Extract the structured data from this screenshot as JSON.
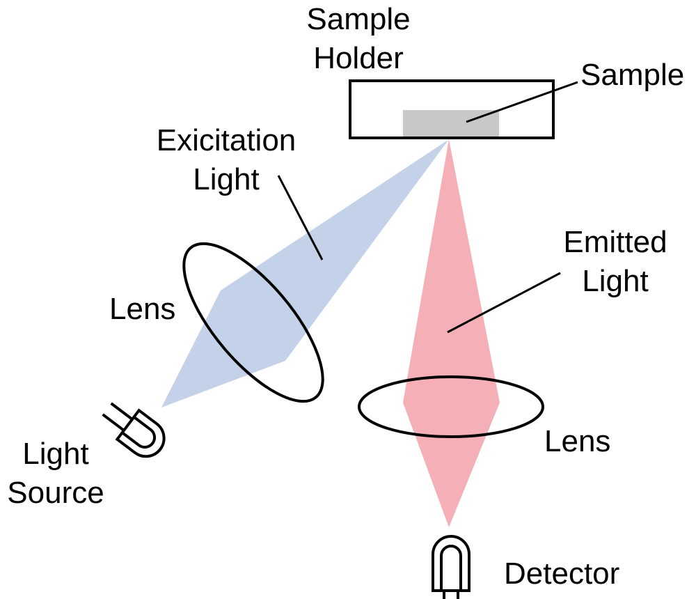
{
  "labels": {
    "sample_holder": [
      "Sample",
      "Holder"
    ],
    "sample": "Sample",
    "excitation_light": [
      "Exicitation",
      "Light"
    ],
    "emitted_light": [
      "Emitted",
      "Light"
    ],
    "lens_left": "Lens",
    "lens_right": "Lens",
    "light_source": [
      "Light",
      "Source"
    ],
    "detector": "Detector"
  },
  "colors": {
    "excitation_beam": "#c3d2e8",
    "emitted_beam": "#f4b0b6",
    "sample_fill": "#c8c8c8",
    "outline": "#000000"
  }
}
